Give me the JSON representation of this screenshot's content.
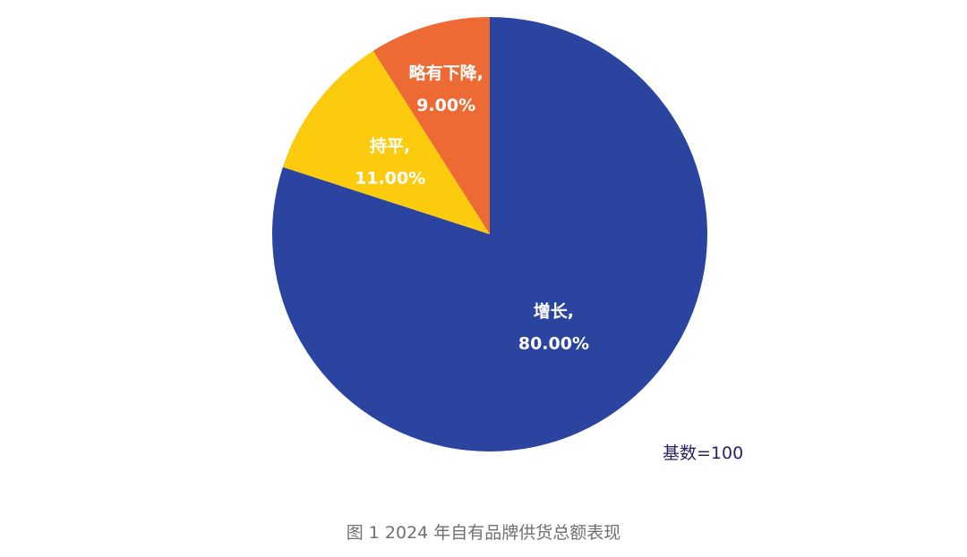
{
  "chart_data": {
    "type": "pie",
    "categories": [
      "增长",
      "持平",
      "略有下降"
    ],
    "values": [
      80.0,
      11.0,
      9.0
    ],
    "slice_labels": [
      {
        "name": "增长,",
        "value": "80.00%"
      },
      {
        "name": "持平,",
        "value": "11.00%"
      },
      {
        "name": "略有下降,",
        "value": "9.00%"
      }
    ],
    "colors": [
      "#2a44a0",
      "#fccb0e",
      "#ee6a35"
    ],
    "start": "12 o'clock",
    "direction": "clockwise",
    "legend": "none",
    "base_note": "基数=100"
  },
  "caption": "图 1 2024 年自有品牌供货总额表现"
}
